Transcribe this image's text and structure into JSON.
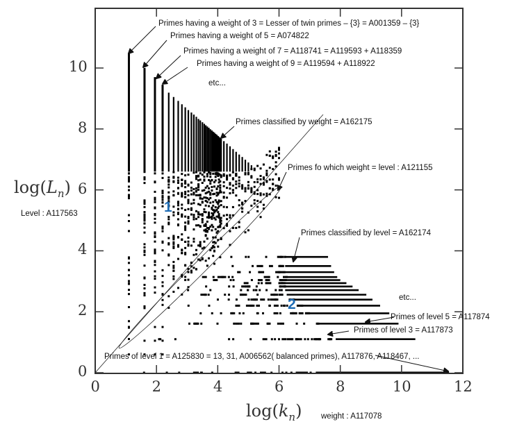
{
  "chart_data": {
    "type": "scatter",
    "xlabel_func": "log",
    "xlabel_var": "k",
    "xlabel_sub": "n",
    "ylabel_func": "log",
    "ylabel_var": "L",
    "ylabel_sub": "n",
    "xlim": [
      0,
      12
    ],
    "ylim": [
      0,
      12
    ],
    "xticks": [
      "0",
      "2",
      "4",
      "6",
      "8",
      "10",
      "12"
    ],
    "yticks": [
      "0",
      "2",
      "4",
      "6",
      "8",
      "10"
    ],
    "grid": false,
    "mark_color": "#000000",
    "region_color": "#1f6db5",
    "region_labels": [
      "1",
      "2"
    ],
    "weight_columns": [
      {
        "x": 1.1,
        "top": 10.5
      },
      {
        "x": 1.61,
        "top": 10.0
      },
      {
        "x": 1.95,
        "top": 9.7
      },
      {
        "x": 2.2,
        "top": 9.45
      },
      {
        "x": 2.4,
        "top": 9.19
      },
      {
        "x": 2.56,
        "top": 9.05
      },
      {
        "x": 2.71,
        "top": 8.92
      },
      {
        "x": 2.83,
        "top": 8.81
      },
      {
        "x": 2.94,
        "top": 8.71
      },
      {
        "x": 3.04,
        "top": 8.62
      },
      {
        "x": 3.14,
        "top": 8.54
      },
      {
        "x": 3.22,
        "top": 8.47
      },
      {
        "x": 3.3,
        "top": 8.4
      },
      {
        "x": 3.37,
        "top": 8.33
      },
      {
        "x": 3.43,
        "top": 8.28
      },
      {
        "x": 3.5,
        "top": 8.22
      },
      {
        "x": 3.56,
        "top": 8.17
      },
      {
        "x": 3.61,
        "top": 8.12
      },
      {
        "x": 3.66,
        "top": 8.08
      },
      {
        "x": 3.71,
        "top": 8.04
      },
      {
        "x": 3.76,
        "top": 7.99
      },
      {
        "x": 3.81,
        "top": 7.95
      },
      {
        "x": 3.85,
        "top": 7.91
      },
      {
        "x": 3.89,
        "top": 7.88
      },
      {
        "x": 3.93,
        "top": 7.84
      },
      {
        "x": 3.97,
        "top": 7.81
      },
      {
        "x": 4.01,
        "top": 7.77
      },
      {
        "x": 4.04,
        "top": 7.74
      },
      {
        "x": 4.08,
        "top": 7.71
      },
      {
        "x": 4.11,
        "top": 7.68
      },
      {
        "x": 4.2,
        "top": 7.6
      },
      {
        "x": 4.3,
        "top": 7.52
      },
      {
        "x": 4.4,
        "top": 7.43
      },
      {
        "x": 4.5,
        "top": 7.34
      },
      {
        "x": 4.6,
        "top": 7.25
      },
      {
        "x": 4.7,
        "top": 7.16
      },
      {
        "x": 4.8,
        "top": 7.08
      },
      {
        "x": 4.9,
        "top": 6.99
      },
      {
        "x": 5.0,
        "top": 6.9
      },
      {
        "x": 5.1,
        "top": 6.81
      },
      {
        "x": 5.2,
        "top": 6.72
      },
      {
        "x": 5.3,
        "top": 6.64
      },
      {
        "x": 5.4,
        "top": 6.55
      },
      {
        "x": 5.5,
        "top": 6.46
      },
      {
        "x": 5.6,
        "top": 6.37
      },
      {
        "x": 5.7,
        "top": 6.28
      },
      {
        "x": 5.8,
        "top": 6.2
      },
      {
        "x": 5.9,
        "top": 6.11
      },
      {
        "x": 6.0,
        "top": 6.02
      }
    ],
    "level_rows": [
      {
        "y": 0.0,
        "x_end": 11.55
      },
      {
        "y": 1.1,
        "x_end": 10.45
      },
      {
        "y": 1.61,
        "x_end": 9.9
      },
      {
        "y": 1.95,
        "x_end": 9.6
      },
      {
        "y": 2.2,
        "x_end": 9.3
      },
      {
        "y": 2.4,
        "x_end": 9.05
      },
      {
        "y": 2.56,
        "x_end": 8.85
      },
      {
        "y": 2.71,
        "x_end": 8.6
      },
      {
        "y": 2.83,
        "x_end": 8.4
      },
      {
        "y": 2.94,
        "x_end": 8.2
      },
      {
        "y": 3.04,
        "x_end": 8.0
      },
      {
        "y": 3.14,
        "x_end": 7.9
      },
      {
        "y": 3.3,
        "x_end": 7.8
      },
      {
        "y": 3.5,
        "x_end": 7.7
      },
      {
        "y": 3.8,
        "x_end": 7.6
      }
    ]
  },
  "annotations": {
    "weight3": "Primes having a weight of 3 = Lesser of twin primes – {3} = A001359 – {3}",
    "weight5": "Primes having a weight of 5 = A074822",
    "weight7": "Primes having a weight of 7 = A118741 = A119593  + A118359",
    "weight9": "Primes having a weight of 9 = A119594 + A118922",
    "etc_weight": "etc...",
    "by_weight": "Primes classified  by weight = A162175",
    "weight_eq_level": "Primes fo which  weight = level : A121155",
    "by_level": "Primes classified  by level = A162174",
    "etc_level": "etc...",
    "level5": "Primes of level 5 = A117874",
    "level3": "Primes of level 3 = A117873",
    "level1": "Primes of level 1 = A125830 = 13, 31, A006562( balanced primes),  A117876, A118467, ...",
    "level_axis": "Level : A117563",
    "weight_axis": "weight : A117078"
  }
}
